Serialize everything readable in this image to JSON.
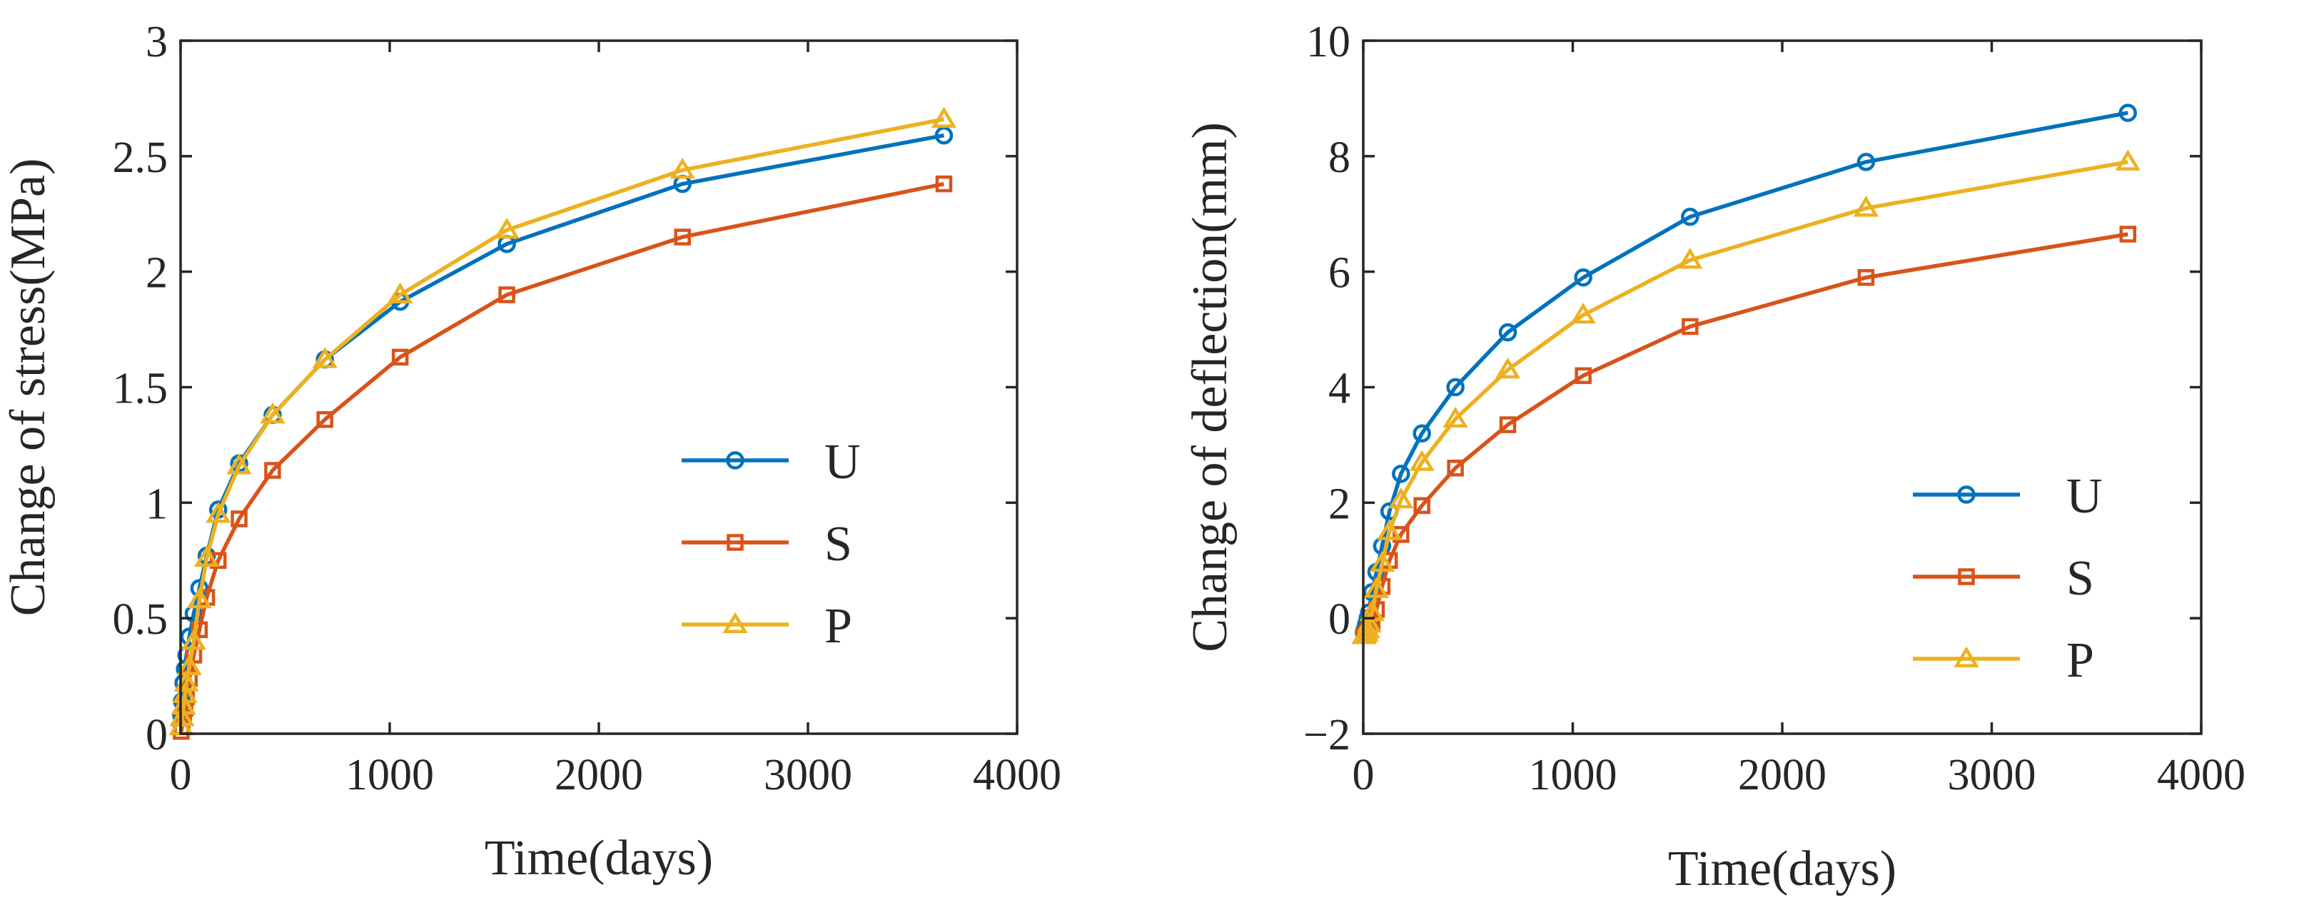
{
  "colors": {
    "U": "#0072BD",
    "S": "#D95319",
    "P": "#EDB120",
    "axis": "#262626"
  },
  "chart_data": [
    {
      "type": "line",
      "xlabel": "Time(days)",
      "ylabel": "Change of stress(MPa)",
      "xlim": [
        0,
        4000
      ],
      "ylim": [
        0,
        3
      ],
      "xticks": [
        0,
        1000,
        2000,
        3000,
        4000
      ],
      "xtick_labels": [
        "0",
        "1000",
        "2000",
        "3000",
        "4000"
      ],
      "yticks": [
        0,
        0.5,
        1,
        1.5,
        2,
        2.5,
        3
      ],
      "ytick_labels": [
        "0",
        "0.5",
        "1",
        "1.5",
        "2",
        "2.5",
        "3"
      ],
      "grid": false,
      "legend_position": "center-right",
      "series": [
        {
          "name": "U",
          "marker": "circle",
          "x": [
            3,
            7,
            14,
            21,
            28,
            42,
            63,
            90,
            125,
            180,
            280,
            440,
            690,
            1050,
            1560,
            2400,
            3650
          ],
          "y": [
            0.08,
            0.14,
            0.22,
            0.28,
            0.34,
            0.42,
            0.52,
            0.63,
            0.77,
            0.97,
            1.17,
            1.38,
            1.62,
            1.87,
            2.12,
            2.38,
            2.59
          ]
        },
        {
          "name": "S",
          "marker": "square",
          "x": [
            3,
            7,
            14,
            21,
            28,
            42,
            63,
            90,
            125,
            180,
            280,
            440,
            690,
            1050,
            1560,
            2400,
            3650
          ],
          "y": [
            0.01,
            0.03,
            0.07,
            0.11,
            0.16,
            0.24,
            0.34,
            0.45,
            0.59,
            0.75,
            0.93,
            1.14,
            1.36,
            1.63,
            1.9,
            2.15,
            2.38
          ]
        },
        {
          "name": "P",
          "marker": "triangle",
          "x": [
            3,
            7,
            14,
            21,
            28,
            42,
            63,
            90,
            125,
            180,
            280,
            440,
            690,
            1050,
            1560,
            2400,
            3650
          ],
          "y": [
            0.03,
            0.07,
            0.12,
            0.17,
            0.22,
            0.29,
            0.4,
            0.58,
            0.76,
            0.95,
            1.16,
            1.38,
            1.62,
            1.9,
            2.18,
            2.44,
            2.66
          ]
        }
      ]
    },
    {
      "type": "line",
      "xlabel": "Time(days)",
      "ylabel": "Change of deflection(mm)",
      "xlim": [
        0,
        4000
      ],
      "ylim": [
        -2,
        10
      ],
      "xticks": [
        0,
        1000,
        2000,
        3000,
        4000
      ],
      "xtick_labels": [
        "0",
        "1000",
        "2000",
        "3000",
        "4000"
      ],
      "yticks": [
        -2,
        0,
        2,
        4,
        6,
        8,
        10
      ],
      "ytick_labels": [
        "−2",
        "0",
        "2",
        "4",
        "6",
        "8",
        "10"
      ],
      "grid": false,
      "legend_position": "lower-right",
      "series": [
        {
          "name": "U",
          "marker": "circle",
          "x": [
            3,
            7,
            14,
            21,
            28,
            42,
            63,
            90,
            125,
            180,
            280,
            440,
            690,
            1050,
            1560,
            2400,
            3650
          ],
          "y": [
            -0.25,
            -0.2,
            -0.1,
            0.0,
            0.1,
            0.45,
            0.8,
            1.25,
            1.85,
            2.5,
            3.2,
            4.0,
            4.95,
            5.9,
            6.95,
            7.9,
            8.75
          ]
        },
        {
          "name": "S",
          "marker": "square",
          "x": [
            3,
            7,
            14,
            21,
            28,
            42,
            63,
            90,
            125,
            180,
            280,
            440,
            690,
            1050,
            1560,
            2400,
            3650
          ],
          "y": [
            -0.3,
            -0.3,
            -0.28,
            -0.25,
            -0.2,
            -0.1,
            0.15,
            0.55,
            1.0,
            1.45,
            1.95,
            2.6,
            3.35,
            4.2,
            5.05,
            5.9,
            6.65
          ]
        },
        {
          "name": "P",
          "marker": "triangle",
          "x": [
            3,
            7,
            14,
            21,
            28,
            42,
            63,
            90,
            125,
            180,
            280,
            440,
            690,
            1050,
            1560,
            2400,
            3650
          ],
          "y": [
            -0.3,
            -0.28,
            -0.25,
            -0.2,
            -0.1,
            0.1,
            0.5,
            0.95,
            1.5,
            2.05,
            2.7,
            3.45,
            4.3,
            5.25,
            6.2,
            7.1,
            7.9
          ]
        }
      ]
    }
  ]
}
